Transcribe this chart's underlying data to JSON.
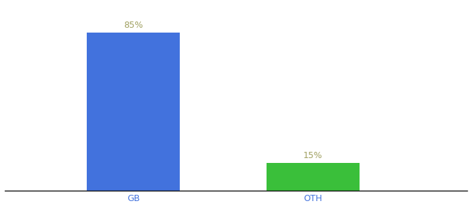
{
  "categories": [
    "GB",
    "OTH"
  ],
  "values": [
    85,
    15
  ],
  "bar_colors": [
    "#4272dd",
    "#3abf3a"
  ],
  "label_texts": [
    "85%",
    "15%"
  ],
  "label_color": "#a0a060",
  "ylim": [
    0,
    100
  ],
  "background_color": "#ffffff",
  "tick_color": "#4272dd",
  "label_fontsize": 9,
  "tick_fontsize": 9,
  "bar_width": 0.18,
  "x_positions": [
    0.3,
    0.65
  ],
  "xlim": [
    0.05,
    0.95
  ]
}
